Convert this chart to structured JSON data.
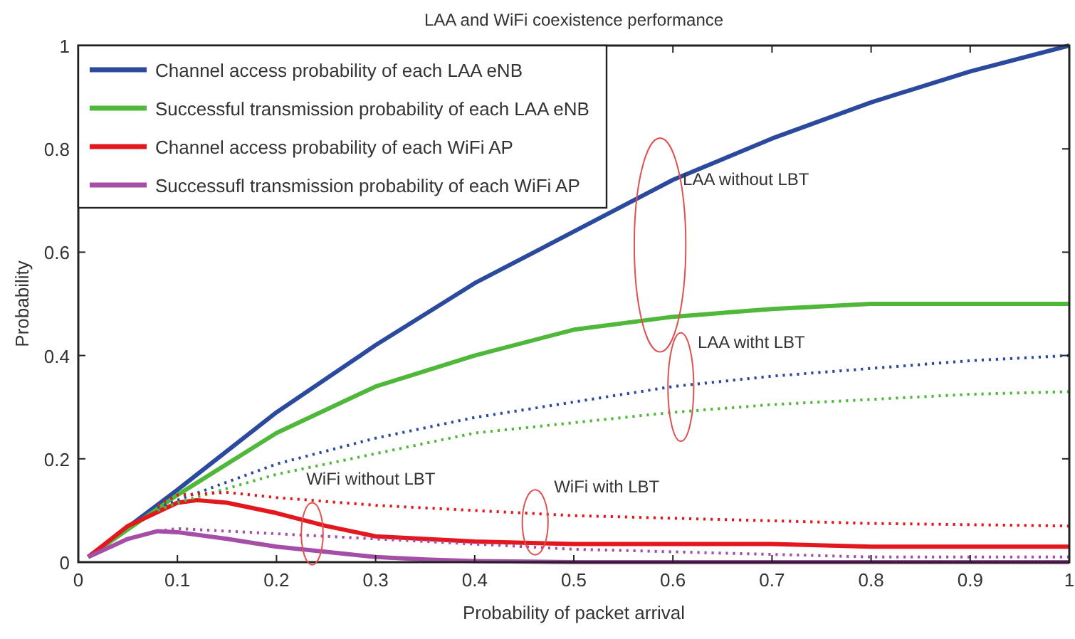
{
  "chart_data": {
    "type": "line",
    "title": "LAA and WiFi coexistence performance",
    "xlabel": "Probability of packet arrival",
    "ylabel": "Probability",
    "xlim": [
      0,
      1
    ],
    "xticks": [
      0,
      0.1,
      0.2,
      0.3,
      0.4,
      0.5,
      0.6,
      0.7,
      0.8,
      0.9,
      1
    ],
    "ylim": [
      0,
      1
    ],
    "yticks": [
      0,
      0.2,
      0.4,
      0.6,
      0.8,
      1
    ],
    "grid": false,
    "legend": "top left",
    "series": [
      {
        "name": "Channel access probability of each LAA eNB",
        "color": "#2b4a9e",
        "line_style": "solid",
        "x": [
          0.01,
          0.1,
          0.2,
          0.3,
          0.4,
          0.5,
          0.6,
          0.7,
          0.8,
          0.9,
          1
        ],
        "values": [
          0.01,
          0.14,
          0.29,
          0.42,
          0.54,
          0.64,
          0.74,
          0.82,
          0.89,
          0.95,
          1
        ]
      },
      {
        "name": "Successful transmission probability of each LAA eNB",
        "color": "#4fb83a",
        "line_style": "solid",
        "x": [
          0.01,
          0.1,
          0.2,
          0.3,
          0.4,
          0.5,
          0.6,
          0.7,
          0.8,
          0.9,
          1
        ],
        "values": [
          0.01,
          0.13,
          0.25,
          0.34,
          0.4,
          0.45,
          0.475,
          0.49,
          0.5,
          0.5,
          0.5
        ]
      },
      {
        "name": "Channel access probability of each WiFi AP",
        "color": "#e3181e",
        "line_style": "solid",
        "x": [
          0.01,
          0.05,
          0.1,
          0.12,
          0.15,
          0.2,
          0.25,
          0.3,
          0.4,
          0.5,
          0.6,
          0.7,
          0.8,
          1
        ],
        "values": [
          0.01,
          0.07,
          0.115,
          0.12,
          0.115,
          0.095,
          0.07,
          0.05,
          0.04,
          0.035,
          0.035,
          0.035,
          0.03,
          0.03
        ]
      },
      {
        "name": "Successufl transmission probability of each WiFi AP",
        "color": "#a44ea8",
        "line_style": "solid",
        "x": [
          0.01,
          0.05,
          0.08,
          0.1,
          0.15,
          0.2,
          0.25,
          0.3,
          0.35,
          0.4,
          0.5,
          1
        ],
        "values": [
          0.01,
          0.045,
          0.06,
          0.058,
          0.045,
          0.03,
          0.02,
          0.01,
          0.005,
          0.002,
          0,
          0
        ]
      },
      {
        "color": "#2b4a9e",
        "line_style": "dotted",
        "x": [
          0.08,
          0.1,
          0.2,
          0.3,
          0.4,
          0.5,
          0.6,
          0.7,
          0.8,
          0.9,
          1
        ],
        "values": [
          0.105,
          0.12,
          0.19,
          0.24,
          0.28,
          0.31,
          0.34,
          0.36,
          0.375,
          0.39,
          0.4
        ]
      },
      {
        "color": "#4fb83a",
        "line_style": "dotted",
        "x": [
          0.08,
          0.1,
          0.2,
          0.3,
          0.4,
          0.5,
          0.6,
          0.7,
          0.8,
          0.9,
          1
        ],
        "values": [
          0.1,
          0.115,
          0.17,
          0.21,
          0.25,
          0.27,
          0.29,
          0.305,
          0.315,
          0.325,
          0.33
        ]
      },
      {
        "color": "#e3181e",
        "line_style": "dotted",
        "x": [
          0.08,
          0.1,
          0.15,
          0.2,
          0.3,
          0.4,
          0.5,
          0.6,
          0.7,
          0.8,
          1
        ],
        "values": [
          0.11,
          0.13,
          0.135,
          0.125,
          0.11,
          0.1,
          0.09,
          0.085,
          0.08,
          0.075,
          0.07
        ]
      },
      {
        "color": "#a44ea8",
        "line_style": "dotted",
        "x": [
          0.08,
          0.1,
          0.2,
          0.3,
          0.4,
          0.5,
          0.6,
          0.7,
          0.8,
          1
        ],
        "values": [
          0.06,
          0.065,
          0.055,
          0.045,
          0.035,
          0.025,
          0.02,
          0.015,
          0.01,
          0.01
        ]
      }
    ],
    "annotations": [
      "LAA without LBT",
      "LAA witht LBT",
      "WiFi without LBT",
      "WiFi with LBT"
    ]
  }
}
